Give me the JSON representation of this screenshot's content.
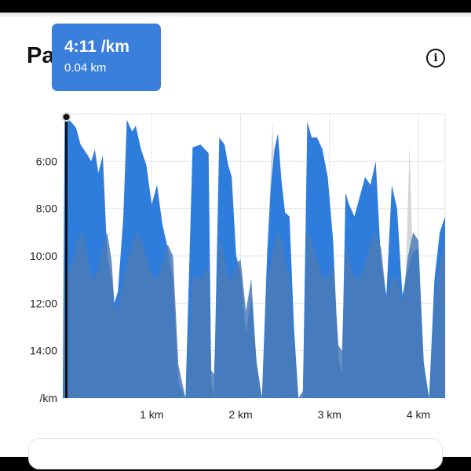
{
  "header": {
    "title": "Pa",
    "info_icon": "info-icon",
    "info_glyph": "i"
  },
  "tooltip": {
    "pace": "4:11 /km",
    "distance": "0.04 km"
  },
  "colors": {
    "pace_fill": "#2e7ddc",
    "elevation_fill": "#4a7ab8",
    "inactive_fill": "#d6d6d6",
    "cursor": "#111111",
    "tooltip_bg": "#3b7fdc"
  },
  "chart_data": {
    "type": "area",
    "title": "",
    "ylabel": "/km",
    "xlabel": "",
    "y_ticks": [
      "6:00",
      "8:00",
      "10:00",
      "12:00",
      "14:00",
      "/km"
    ],
    "x_ticks": [
      "1 km",
      "2 km",
      "3 km",
      "4 km"
    ],
    "x_tick_values": [
      1,
      2,
      3,
      4
    ],
    "xlim": [
      0,
      4.3
    ],
    "ylim_seconds_per_km": [
      240,
      960
    ],
    "y_inverted": true,
    "grid": true,
    "cursor_x_km": 0.04,
    "series": [
      {
        "x": [
          0,
          0.02,
          0.05,
          0.1,
          0.15,
          0.2,
          0.25,
          0.28,
          0.32,
          0.36,
          0.4,
          0.45,
          0.5,
          0.55,
          0.58,
          0.62,
          0.68,
          0.72,
          0.78,
          0.82,
          0.88,
          0.94,
          1.0,
          1.06,
          1.12,
          1.18,
          1.24,
          1.3,
          1.38,
          1.46,
          1.55,
          1.64,
          1.67,
          1.7,
          1.76,
          1.82,
          1.86,
          1.9,
          1.95,
          2.0,
          2.06,
          2.12,
          2.18,
          2.24,
          2.3,
          2.34,
          2.38,
          2.42,
          2.46,
          2.5,
          2.55,
          2.6,
          2.65,
          2.7,
          2.75,
          2.8,
          2.86,
          2.92,
          2.98,
          3.04,
          3.1,
          3.14,
          3.18,
          3.22,
          3.28,
          3.34,
          3.4,
          3.46,
          3.52,
          3.58,
          3.64,
          3.7,
          3.76,
          3.82,
          3.88,
          3.94,
          4.0,
          4.06,
          4.12,
          4.18,
          4.24,
          4.3
        ],
        "y_seconds_per_km": [
          940,
          258,
          252,
          262,
          276,
          318,
          335,
          345,
          360,
          330,
          390,
          345,
          600,
          660,
          720,
          690,
          505,
          255,
          285,
          270,
          330,
          370,
          470,
          420,
          520,
          580,
          660,
          920,
          960,
          325,
          318,
          340,
          920,
          960,
          300,
          318,
          370,
          400,
          600,
          640,
          800,
          700,
          870,
          960,
          585,
          425,
          330,
          290,
          410,
          490,
          500,
          780,
          960,
          975,
          260,
          300,
          300,
          330,
          400,
          560,
          860,
          900,
          440,
          470,
          500,
          450,
          400,
          420,
          360,
          620,
          700,
          420,
          480,
          700,
          640,
          590,
          580,
          870,
          960,
          660,
          540,
          500
        ]
      }
    ]
  }
}
